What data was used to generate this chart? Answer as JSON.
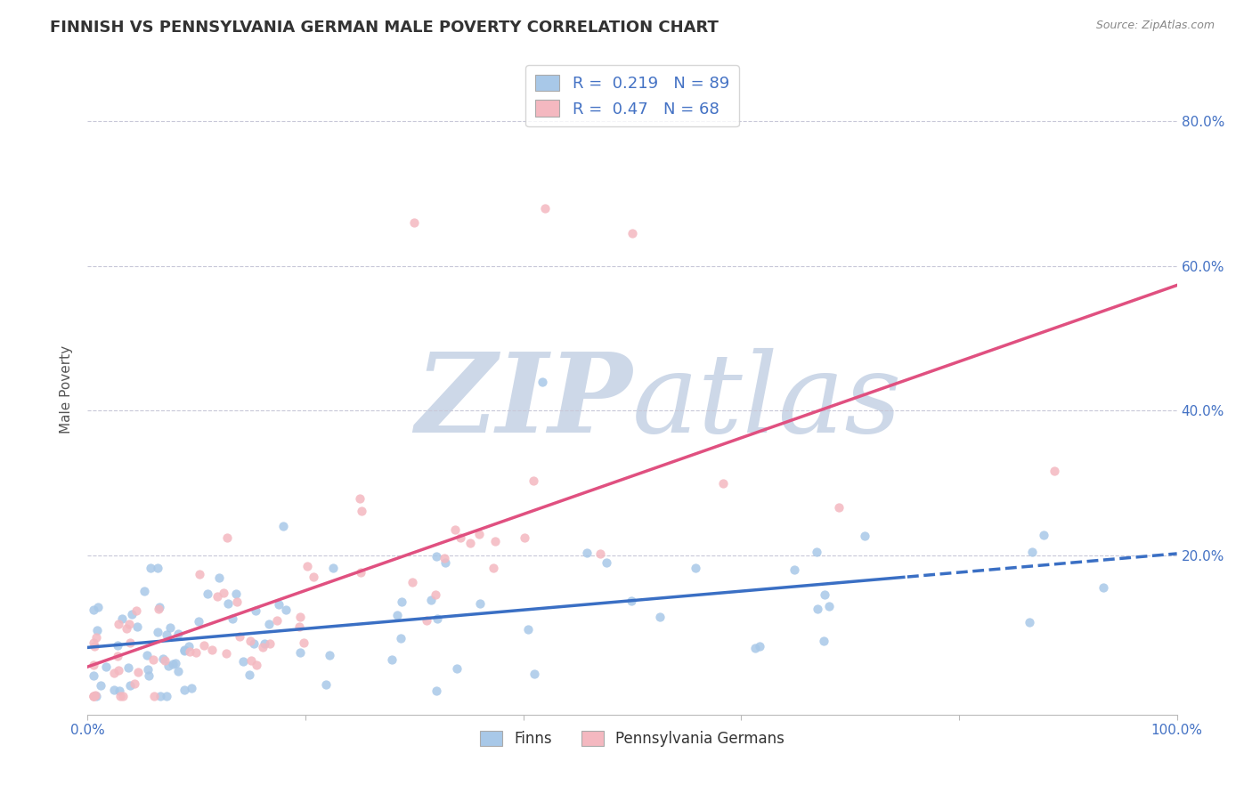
{
  "title": "FINNISH VS PENNSYLVANIA GERMAN MALE POVERTY CORRELATION CHART",
  "source_text": "Source: ZipAtlas.com",
  "ylabel": "Male Poverty",
  "xlim": [
    0.0,
    1.0
  ],
  "ylim": [
    -0.02,
    0.88
  ],
  "ytick_right_labels": [
    "80.0%",
    "60.0%",
    "40.0%",
    "20.0%"
  ],
  "ytick_right_values": [
    0.8,
    0.6,
    0.4,
    0.2
  ],
  "finns_R": 0.219,
  "finns_N": 89,
  "pagermans_R": 0.47,
  "pagermans_N": 68,
  "finns_color": "#a8c8e8",
  "pagermans_color": "#f4b8c0",
  "finns_line_color": "#3a6fc4",
  "pagermans_line_color": "#e05080",
  "background_color": "#ffffff",
  "grid_color": "#c8c8d8",
  "watermark_color": "#cdd8e8",
  "title_fontsize": 13,
  "axis_label_fontsize": 11,
  "tick_fontsize": 11
}
